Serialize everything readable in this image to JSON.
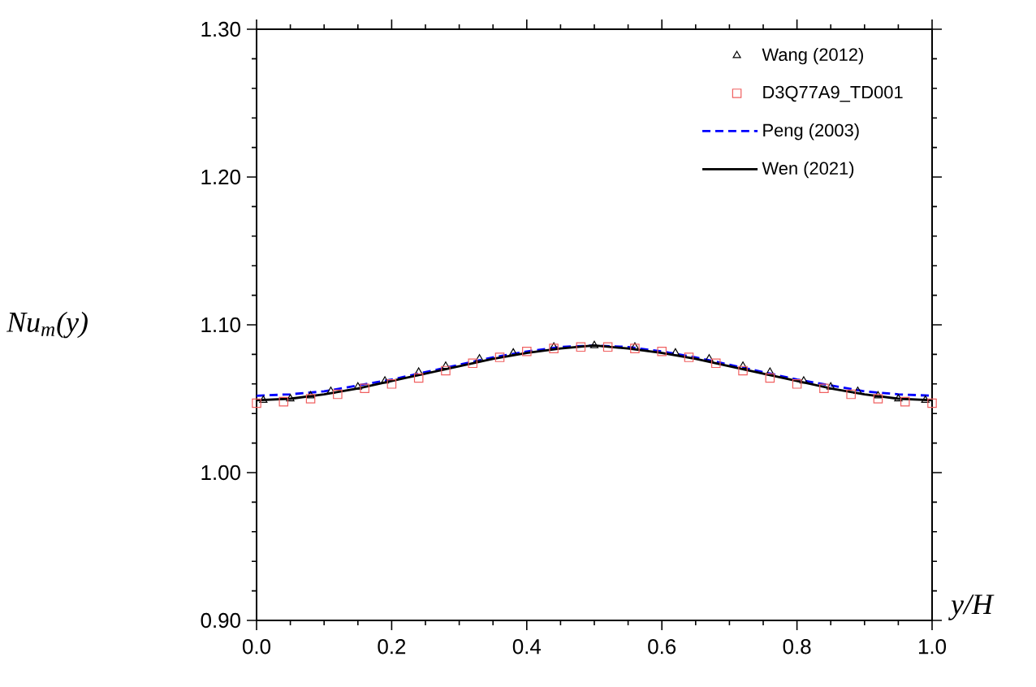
{
  "chart_data": {
    "type": "line",
    "xlabel": "y/H",
    "ylabel": "Nu$_{m}$(y)",
    "xlim": [
      0,
      1
    ],
    "ylim": [
      0.9,
      1.3
    ],
    "xticks": [
      {
        "value": 0,
        "label": "0.0"
      },
      {
        "value": 0.2,
        "label": "0.2"
      },
      {
        "value": 0.4,
        "label": "0.4"
      },
      {
        "value": 0.6,
        "label": "0.6"
      },
      {
        "value": 0.8,
        "label": "0.8"
      },
      {
        "value": 1,
        "label": "1.0"
      }
    ],
    "yticks": [
      {
        "value": 0.9,
        "label": "0.90"
      },
      {
        "value": 1.0,
        "label": "1.00"
      },
      {
        "value": 1.1,
        "label": "1.10"
      },
      {
        "value": 1.2,
        "label": "1.20"
      },
      {
        "value": 1.3,
        "label": "1.30"
      }
    ],
    "legend": "top right",
    "series": [
      {
        "name": "Wang (2012)",
        "type": "scatter",
        "marker": "triangle",
        "color": "#000000",
        "x": [
          0.01,
          0.05,
          0.08,
          0.11,
          0.15,
          0.19,
          0.24,
          0.28,
          0.33,
          0.38,
          0.44,
          0.5,
          0.56,
          0.62,
          0.67,
          0.72,
          0.76,
          0.81,
          0.85,
          0.89,
          0.92,
          0.95,
          0.99
        ],
        "values": [
          1.049,
          1.05,
          1.052,
          1.055,
          1.058,
          1.062,
          1.068,
          1.072,
          1.077,
          1.081,
          1.085,
          1.086,
          1.085,
          1.081,
          1.077,
          1.072,
          1.068,
          1.062,
          1.058,
          1.055,
          1.052,
          1.05,
          1.049
        ]
      },
      {
        "name": "D3Q77A9_TD001",
        "type": "scatter",
        "marker": "square",
        "color": "#f06060",
        "x": [
          0.0,
          0.04,
          0.08,
          0.12,
          0.16,
          0.2,
          0.24,
          0.28,
          0.32,
          0.36,
          0.4,
          0.44,
          0.48,
          0.52,
          0.56,
          0.6,
          0.64,
          0.68,
          0.72,
          0.76,
          0.8,
          0.84,
          0.88,
          0.92,
          0.96,
          1.0
        ],
        "values": [
          1.047,
          1.048,
          1.05,
          1.053,
          1.057,
          1.06,
          1.064,
          1.069,
          1.074,
          1.078,
          1.082,
          1.084,
          1.085,
          1.085,
          1.084,
          1.082,
          1.078,
          1.074,
          1.069,
          1.064,
          1.06,
          1.057,
          1.053,
          1.05,
          1.048,
          1.047
        ]
      },
      {
        "name": "Peng (2003)",
        "line_style": "dashed",
        "marker": "none",
        "color": "#0000ff",
        "x": [
          0,
          0.05,
          0.1,
          0.15,
          0.2,
          0.25,
          0.3,
          0.35,
          0.4,
          0.45,
          0.5,
          0.55,
          0.6,
          0.65,
          0.7,
          0.75,
          0.8,
          0.85,
          0.9,
          0.95,
          1.0
        ],
        "values": [
          1.052,
          1.053,
          1.055,
          1.059,
          1.063,
          1.068,
          1.073,
          1.078,
          1.082,
          1.085,
          1.086,
          1.085,
          1.082,
          1.078,
          1.073,
          1.068,
          1.063,
          1.059,
          1.055,
          1.053,
          1.052
        ]
      },
      {
        "name": "Wen (2021)",
        "line_style": "solid",
        "marker": "none",
        "color": "#000000",
        "x": [
          0,
          0.05,
          0.1,
          0.15,
          0.2,
          0.25,
          0.3,
          0.35,
          0.4,
          0.45,
          0.5,
          0.55,
          0.6,
          0.65,
          0.7,
          0.75,
          0.8,
          0.85,
          0.9,
          0.95,
          1.0
        ],
        "values": [
          1.049,
          1.05,
          1.053,
          1.057,
          1.062,
          1.067,
          1.072,
          1.077,
          1.081,
          1.084,
          1.086,
          1.084,
          1.081,
          1.077,
          1.072,
          1.067,
          1.062,
          1.057,
          1.053,
          1.05,
          1.049
        ]
      }
    ]
  }
}
